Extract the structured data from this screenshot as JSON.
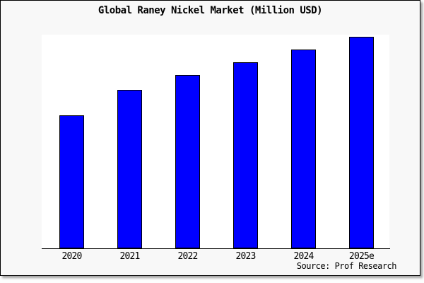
{
  "figure": {
    "background": "#f8f8f8",
    "border_color": "#000000",
    "text_color": "#000000"
  },
  "chart_data": {
    "type": "bar",
    "title": "Global Raney Nickel Market (Million USD)",
    "categories": [
      "2020",
      "2021",
      "2022",
      "2023",
      "2024",
      "2025e"
    ],
    "values": [
      63,
      75,
      82,
      88,
      94,
      100
    ],
    "xlabel": "",
    "ylabel": "",
    "ylim": [
      0,
      101
    ],
    "grid": false,
    "legend": false,
    "y_axis_labels_visible": false,
    "bar_color": "#0000ff",
    "bar_edge_color": "#000000",
    "axis_line_color": "#000000",
    "plot_background": "#ffffff",
    "source_note": "Source: Prof Research"
  }
}
